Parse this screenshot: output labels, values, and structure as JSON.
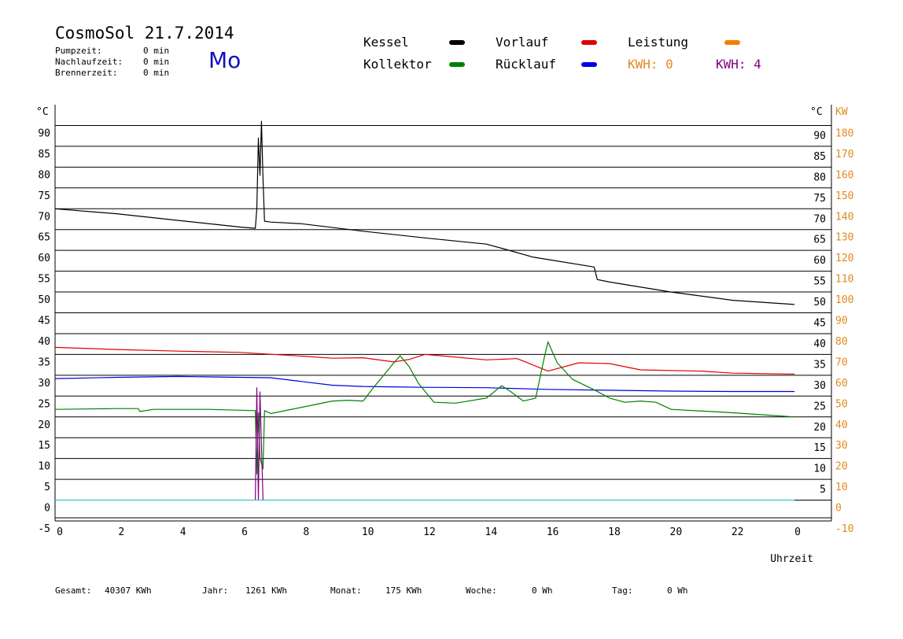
{
  "header": {
    "title": "CosmoSol 21.7.2014",
    "day": "Mo",
    "info": [
      {
        "label": "Pumpzeit:",
        "value": "0 min"
      },
      {
        "label": "Nachlaufzeit:",
        "value": "0 min"
      },
      {
        "label": "Brennerzeit:",
        "value": "0 min"
      }
    ]
  },
  "legend": {
    "kessel": {
      "label": "Kessel",
      "color": "#000000"
    },
    "kollektor": {
      "label": "Kollektor",
      "color": "#008000"
    },
    "vorlauf": {
      "label": "Vorlauf",
      "color": "#e00000"
    },
    "ruecklauf": {
      "label": "Rücklauf",
      "color": "#0000e0"
    },
    "leistung": {
      "label": "Leistung",
      "color": "#f08000"
    },
    "kwh1": {
      "label": "KWH: 0",
      "color": "#e08a1e"
    },
    "kwh2": {
      "label": "KWH: 4",
      "color": "#800080"
    }
  },
  "footer": [
    {
      "label": "Gesamt:",
      "value": "40307 KWh"
    },
    {
      "label": "Jahr:",
      "value": "1261 KWh"
    },
    {
      "label": "Monat:",
      "value": "175 KWh"
    },
    {
      "label": "Woche:",
      "value": "0 Wh"
    },
    {
      "label": "Tag:",
      "value": "0 Wh"
    }
  ],
  "chart_data": {
    "type": "line",
    "xlabel": "Uhrzeit",
    "ylabel_left": "°C",
    "ylabel_right_temp": "°C",
    "ylabel_right_power": "KW",
    "xlim": [
      0,
      24
    ],
    "ylim": [
      -5,
      95
    ],
    "x_ticks": [
      "0",
      "2",
      "4",
      "6",
      "8",
      "10",
      "12",
      "14",
      "16",
      "18",
      "20",
      "22",
      "0"
    ],
    "y_ticks_left": [
      -5,
      0,
      5,
      10,
      15,
      20,
      25,
      30,
      35,
      40,
      45,
      50,
      55,
      60,
      65,
      70,
      75,
      80,
      85,
      90
    ],
    "y_ticks_right_temp": [
      5,
      10,
      15,
      20,
      25,
      30,
      35,
      40,
      45,
      50,
      55,
      60,
      65,
      70,
      75,
      80,
      85,
      90
    ],
    "y_ticks_right_power": [
      -10,
      0,
      10,
      20,
      30,
      40,
      50,
      60,
      70,
      80,
      90,
      100,
      110,
      120,
      130,
      140,
      150,
      160,
      170,
      180
    ],
    "grid": true,
    "series": [
      {
        "name": "Kessel",
        "color": "#000000",
        "points": [
          [
            0,
            70
          ],
          [
            2,
            68.8
          ],
          [
            4,
            67.2
          ],
          [
            6,
            65.6
          ],
          [
            6.5,
            65.3
          ],
          [
            6.55,
            70
          ],
          [
            6.6,
            87
          ],
          [
            6.65,
            78
          ],
          [
            6.7,
            91
          ],
          [
            6.75,
            77
          ],
          [
            6.8,
            67
          ],
          [
            7,
            66.8
          ],
          [
            8,
            66.4
          ],
          [
            10,
            64.6
          ],
          [
            12,
            63
          ],
          [
            14,
            61.5
          ],
          [
            14.5,
            60.5
          ],
          [
            15.5,
            58.4
          ],
          [
            17.5,
            56
          ],
          [
            17.6,
            53
          ],
          [
            18,
            52.4
          ],
          [
            20,
            50
          ],
          [
            22,
            48
          ],
          [
            24,
            47
          ]
        ]
      },
      {
        "name": "Vorlauf",
        "color": "#e00000",
        "points": [
          [
            0,
            36.7
          ],
          [
            2,
            36.2
          ],
          [
            4,
            35.8
          ],
          [
            6,
            35.5
          ],
          [
            8,
            34.6
          ],
          [
            9,
            34.1
          ],
          [
            10,
            34.2
          ],
          [
            11,
            33.2
          ],
          [
            11.5,
            33.8
          ],
          [
            12,
            35
          ],
          [
            12.5,
            34.7
          ],
          [
            14,
            33.7
          ],
          [
            15,
            34
          ],
          [
            16,
            31
          ],
          [
            17,
            33
          ],
          [
            18,
            32.8
          ],
          [
            19,
            31.3
          ],
          [
            21,
            31
          ],
          [
            22,
            30.5
          ],
          [
            24,
            30.3
          ]
        ]
      },
      {
        "name": "Rücklauf",
        "color": "#0000e0",
        "points": [
          [
            0,
            29.2
          ],
          [
            2,
            29.5
          ],
          [
            4,
            29.7
          ],
          [
            6,
            29.5
          ],
          [
            7,
            29.4
          ],
          [
            8,
            28.5
          ],
          [
            9,
            27.6
          ],
          [
            10,
            27.3
          ],
          [
            12,
            27.1
          ],
          [
            14,
            27
          ],
          [
            16,
            26.6
          ],
          [
            18,
            26.4
          ],
          [
            20,
            26.2
          ],
          [
            22,
            26.1
          ],
          [
            24,
            26.1
          ]
        ]
      },
      {
        "name": "Kollektor",
        "color": "#008000",
        "points": [
          [
            0,
            21.8
          ],
          [
            2,
            22
          ],
          [
            2.7,
            22
          ],
          [
            2.75,
            21.3
          ],
          [
            3.2,
            21.8
          ],
          [
            5,
            21.8
          ],
          [
            6.5,
            21.5
          ],
          [
            6.55,
            6.3
          ],
          [
            6.6,
            21
          ],
          [
            6.65,
            10
          ],
          [
            6.75,
            7.5
          ],
          [
            6.8,
            21.5
          ],
          [
            7,
            20.8
          ],
          [
            8,
            22.3
          ],
          [
            9,
            23.8
          ],
          [
            9.5,
            24
          ],
          [
            10,
            23.8
          ],
          [
            10.3,
            26.7
          ],
          [
            11,
            33
          ],
          [
            11.2,
            34.7
          ],
          [
            11.5,
            32
          ],
          [
            11.8,
            28
          ],
          [
            12.3,
            23.5
          ],
          [
            13,
            23.3
          ],
          [
            14,
            24.5
          ],
          [
            14.5,
            27.5
          ],
          [
            14.8,
            26
          ],
          [
            15.2,
            23.8
          ],
          [
            15.6,
            24.5
          ],
          [
            15.9,
            35
          ],
          [
            16,
            38
          ],
          [
            16.3,
            33
          ],
          [
            16.8,
            29
          ],
          [
            17.5,
            26.5
          ],
          [
            18,
            24.5
          ],
          [
            18.5,
            23.5
          ],
          [
            19,
            23.8
          ],
          [
            19.5,
            23.5
          ],
          [
            20,
            21.8
          ],
          [
            22,
            21
          ],
          [
            23,
            20.5
          ],
          [
            24,
            20
          ]
        ]
      },
      {
        "name": "Leistung",
        "color": "#800080",
        "points": [
          [
            6.5,
            0
          ],
          [
            6.55,
            27
          ],
          [
            6.6,
            0
          ],
          [
            6.65,
            26
          ],
          [
            6.7,
            13
          ],
          [
            6.75,
            0
          ]
        ]
      },
      {
        "name": "",
        "color": "#30c8d0",
        "points": [
          [
            0,
            0
          ],
          [
            24,
            0
          ]
        ]
      }
    ]
  }
}
